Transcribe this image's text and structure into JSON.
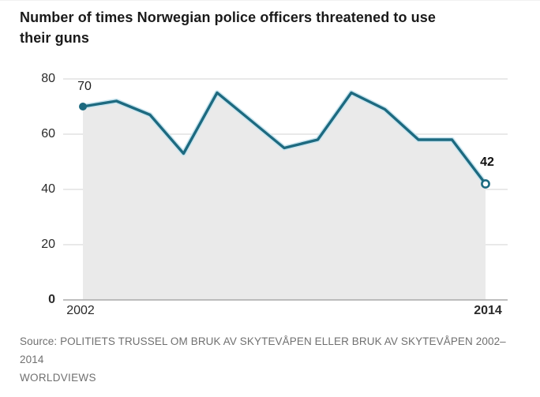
{
  "title": {
    "line1": "Number of times Norwegian police officers threatened to use",
    "line2": "their guns"
  },
  "axis": {
    "x_first": "2002",
    "x_last": "2014",
    "y_ticks": [
      "80",
      "60",
      "40",
      "20",
      "0"
    ]
  },
  "annotations": {
    "first_value": "70",
    "last_value": "42"
  },
  "source": {
    "line1": "Source: POLITIETS TRUSSEL OM BRUK AV SKYTEVÅPEN ELLER BRUK AV SKYTEVÅPEN 2002–",
    "line2": "2014"
  },
  "footer": {
    "label": "WORLDVIEWS"
  },
  "colors": {
    "line": "#1d6a80",
    "line_halo": "#c9e5ef",
    "area_fill": "#eaeaea",
    "gridline": "#dcdcdc",
    "axis_line": "#a9a9a9",
    "title_text": "#1a1a1a",
    "tick_text": "#2a2a2a",
    "source_text": "#707070"
  },
  "chart_data": {
    "type": "line",
    "title": "Number of times Norwegian police officers threatened to use their guns",
    "x": [
      2002,
      2003,
      2004,
      2005,
      2006,
      2007,
      2008,
      2009,
      2010,
      2011,
      2012,
      2013,
      2014
    ],
    "values": [
      70,
      72,
      67,
      53,
      75,
      65,
      55,
      58,
      75,
      69,
      58,
      58,
      42
    ],
    "ylim": [
      0,
      80
    ],
    "yticks": [
      0,
      20,
      40,
      60,
      80
    ],
    "xtick_labels": [
      "2002",
      "2014"
    ],
    "grid": true,
    "legend_position": "none",
    "area_filled_to_zero": true,
    "point_labels": {
      "first": {
        "x": 2002,
        "value": 70,
        "marker": "filled-dot"
      },
      "last": {
        "x": 2014,
        "value": 42,
        "marker": "open-dot"
      }
    }
  }
}
